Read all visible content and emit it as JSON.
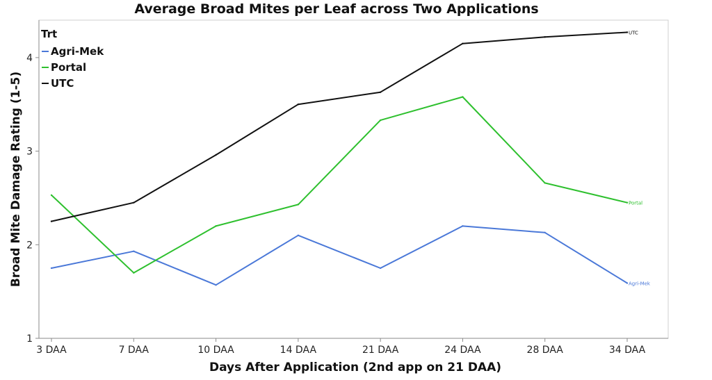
{
  "chart_data": {
    "type": "line",
    "title": "Average Broad Mites per Leaf across Two Applications",
    "xlabel": "Days After Application (2nd app on 21 DAA)",
    "ylabel": "Broad Mite Damage Rating (1-5)",
    "categories": [
      "3 DAA",
      "7 DAA",
      "10 DAA",
      "14 DAA",
      "21 DAA",
      "24 DAA",
      "28 DAA",
      "34 DAA"
    ],
    "ylim": [
      1,
      4.4
    ],
    "yticks": [
      1,
      2,
      3,
      4
    ],
    "grid": false,
    "legend": {
      "title": "Trt",
      "placement": "top-left"
    },
    "series": [
      {
        "name": "Agri-Mek",
        "color": "#4a78d8",
        "values": [
          1.75,
          1.93,
          1.57,
          2.1,
          1.75,
          2.2,
          2.13,
          1.59
        ]
      },
      {
        "name": "Portal",
        "color": "#2ec02e",
        "values": [
          2.53,
          1.7,
          2.2,
          2.43,
          3.33,
          3.58,
          2.66,
          2.45
        ]
      },
      {
        "name": "UTC",
        "color": "#111111",
        "values": [
          2.25,
          2.45,
          2.96,
          3.5,
          3.63,
          4.15,
          4.22,
          4.27
        ]
      }
    ]
  }
}
